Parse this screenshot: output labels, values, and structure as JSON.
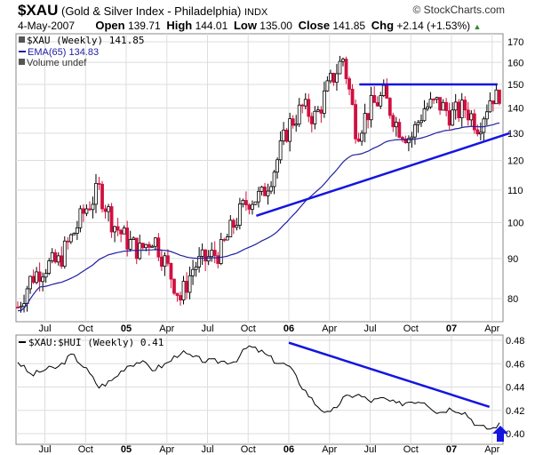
{
  "header": {
    "symbol": "$XAU",
    "name": "(Gold & Silver Index - Philadelphia)",
    "exchange": "INDX",
    "source": "© StockCharts.com",
    "date": "4-May-2007",
    "open_label": "Open",
    "open": "139.71",
    "high_label": "High",
    "high": "144.01",
    "low_label": "Low",
    "low": "135.00",
    "close_label": "Close",
    "close": "141.85",
    "chg_label": "Chg",
    "chg": "+2.14 (+1.53%)",
    "up_arrow": "▲"
  },
  "chart_data": [
    {
      "type": "candlestick",
      "title": "$XAU (Weekly) 141.85",
      "legend": [
        "$XAU (Weekly) 141.85",
        "EMA(65) 134.83",
        "Volume undef"
      ],
      "scale": "log",
      "ylim": [
        75,
        175
      ],
      "yticks": [
        80,
        90,
        100,
        110,
        120,
        130,
        140,
        150,
        160,
        170
      ],
      "xticks": [
        "Jul",
        "Oct",
        "05",
        "Apr",
        "Jul",
        "Oct",
        "06",
        "Apr",
        "Jul",
        "Oct",
        "07",
        "Apr"
      ],
      "x_months_from_May2004": [
        0,
        1,
        2,
        3,
        4,
        5,
        6,
        7,
        8,
        9,
        10,
        11,
        12,
        13,
        14,
        15,
        16,
        17,
        18,
        19,
        20,
        21,
        22,
        23,
        24,
        25,
        26,
        27,
        28,
        29,
        30,
        31,
        32,
        33,
        34,
        35,
        35.6
      ],
      "monthly_close_approx": [
        78,
        85,
        88,
        89,
        96,
        104,
        110,
        100,
        95,
        92,
        96,
        88,
        80,
        88,
        90,
        92,
        100,
        107,
        108,
        118,
        133,
        140,
        136,
        150,
        162,
        130,
        140,
        145,
        133,
        128,
        140,
        142,
        137,
        140,
        133,
        146,
        141.85
      ],
      "ema_period": 65,
      "trendlines": [
        {
          "from": [
            25.2,
            150
          ],
          "to": [
            35.4,
            150
          ],
          "color": "#1515e0",
          "label": "resistance"
        },
        {
          "from": [
            17.6,
            102
          ],
          "to": [
            36.3,
            130
          ],
          "color": "#1515e0",
          "label": "support"
        }
      ]
    },
    {
      "type": "line",
      "title": "$XAU:$HUI (Weekly) 0.41",
      "ylim": [
        0.397,
        0.485
      ],
      "yticks": [
        "0.40",
        "0.42",
        "0.44",
        "0.46",
        "0.48"
      ],
      "x_months_from_May2004": [
        0,
        1,
        2,
        3,
        4,
        5,
        6,
        7,
        8,
        9,
        10,
        11,
        12,
        13,
        14,
        15,
        16,
        17,
        18,
        19,
        20,
        21,
        22,
        23,
        24,
        25,
        26,
        27,
        28,
        29,
        30,
        31,
        32,
        33,
        34,
        35,
        35.6
      ],
      "values": [
        0.462,
        0.45,
        0.455,
        0.457,
        0.468,
        0.456,
        0.44,
        0.446,
        0.458,
        0.462,
        0.455,
        0.46,
        0.47,
        0.465,
        0.462,
        0.462,
        0.462,
        0.475,
        0.47,
        0.462,
        0.458,
        0.44,
        0.425,
        0.416,
        0.43,
        0.434,
        0.428,
        0.43,
        0.425,
        0.428,
        0.428,
        0.418,
        0.422,
        0.418,
        0.406,
        0.404,
        0.41
      ],
      "trendline": {
        "from": [
          20,
          0.478
        ],
        "to": [
          34.8,
          0.423
        ],
        "color": "#1515e0"
      },
      "annotation": "blue up arrow at latest value"
    }
  ]
}
